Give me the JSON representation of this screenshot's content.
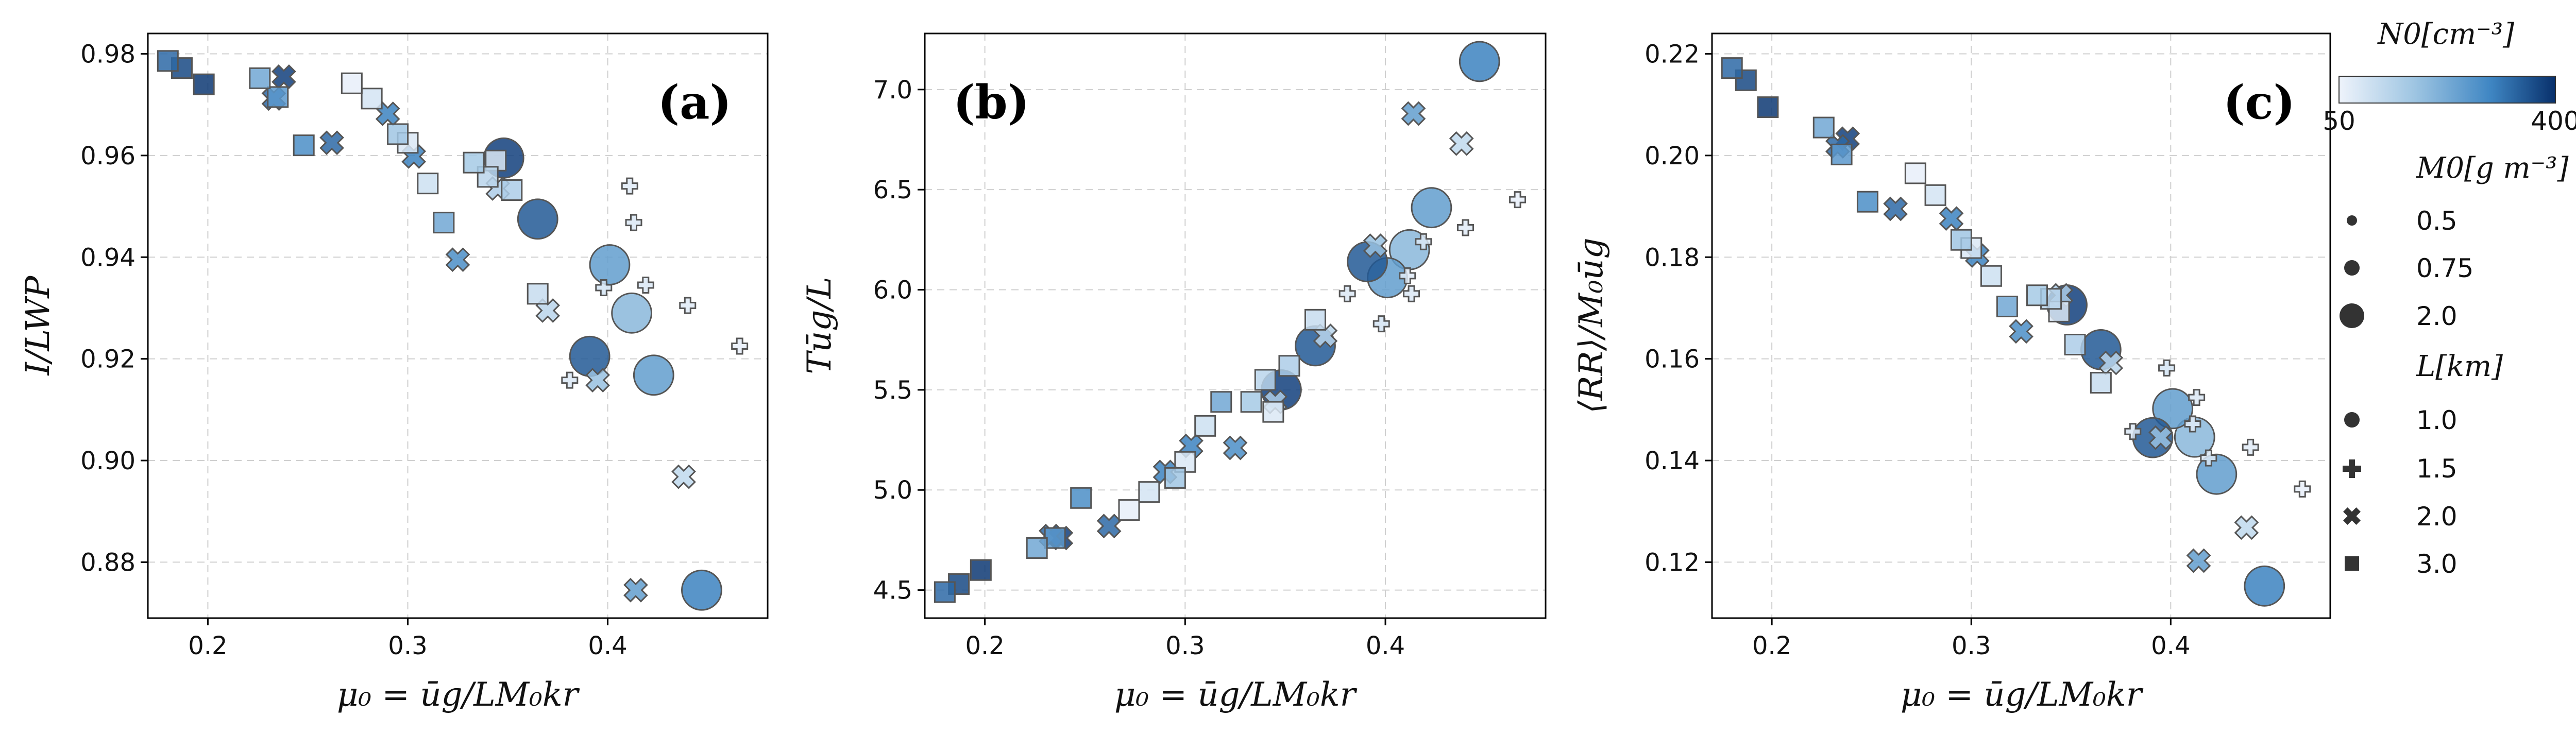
{
  "chart_data": {
    "type": "scatter",
    "colormap": {
      "low": "#eef3fb",
      "high": "#08306b"
    },
    "colorbar": {
      "title": "N0[cm⁻³]",
      "min_label": "50",
      "max_label": "400",
      "min": 50,
      "max": 400
    },
    "size_legend": {
      "title": "M0[g m⁻³]",
      "entries": [
        {
          "label": "0.5",
          "m0": 0.5
        },
        {
          "label": "0.75",
          "m0": 0.75
        },
        {
          "label": "2.0",
          "m0": 2.0
        }
      ]
    },
    "marker_legend": {
      "title": "L[km]",
      "entries": [
        {
          "label": "1.0",
          "L": 1.0,
          "shape": "circle"
        },
        {
          "label": "1.5",
          "L": 1.5,
          "shape": "plus"
        },
        {
          "label": "2.0",
          "L": 2.0,
          "shape": "x"
        },
        {
          "label": "3.0",
          "L": 3.0,
          "shape": "square"
        }
      ]
    },
    "shape_by_L": {
      "1": "circle",
      "1.5": "plus",
      "2": "x",
      "3": "square"
    },
    "shared_x": [
      0.447,
      0.423,
      0.412,
      0.401,
      0.391,
      0.365,
      0.348,
      0.466,
      0.44,
      0.419,
      0.413,
      0.411,
      0.398,
      0.381,
      0.438,
      0.414,
      0.395,
      0.37,
      0.345,
      0.325,
      0.303,
      0.29,
      0.262,
      0.238,
      0.233,
      0.365,
      0.352,
      0.344,
      0.34,
      0.333,
      0.318,
      0.31,
      0.3,
      0.295,
      0.282,
      0.272,
      0.248,
      0.235,
      0.226,
      0.198,
      0.187,
      0.18
    ],
    "point_props": [
      {
        "L": 1,
        "N0": 300,
        "M0": 2
      },
      {
        "L": 1,
        "N0": 250,
        "M0": 2
      },
      {
        "L": 1,
        "N0": 200,
        "M0": 2
      },
      {
        "L": 1,
        "N0": 250,
        "M0": 2
      },
      {
        "L": 1,
        "N0": 350,
        "M0": 2
      },
      {
        "L": 1,
        "N0": 350,
        "M0": 2
      },
      {
        "L": 1,
        "N0": 380,
        "M0": 2
      },
      {
        "L": 1.5,
        "N0": 60,
        "M0": 0.5
      },
      {
        "L": 1.5,
        "N0": 70,
        "M0": 0.5
      },
      {
        "L": 1.5,
        "N0": 80,
        "M0": 0.5
      },
      {
        "L": 1.5,
        "N0": 80,
        "M0": 0.5
      },
      {
        "L": 1.5,
        "N0": 70,
        "M0": 0.5
      },
      {
        "L": 1.5,
        "N0": 90,
        "M0": 0.5
      },
      {
        "L": 1.5,
        "N0": 80,
        "M0": 0.5
      },
      {
        "L": 2,
        "N0": 120,
        "M0": 0.75
      },
      {
        "L": 2,
        "N0": 250,
        "M0": 0.75
      },
      {
        "L": 2,
        "N0": 180,
        "M0": 0.75
      },
      {
        "L": 2,
        "N0": 130,
        "M0": 0.75
      },
      {
        "L": 2,
        "N0": 150,
        "M0": 0.75
      },
      {
        "L": 2,
        "N0": 280,
        "M0": 0.75
      },
      {
        "L": 2,
        "N0": 300,
        "M0": 0.75
      },
      {
        "L": 2,
        "N0": 300,
        "M0": 0.75
      },
      {
        "L": 2,
        "N0": 330,
        "M0": 0.75
      },
      {
        "L": 2,
        "N0": 380,
        "M0": 0.75
      },
      {
        "L": 2,
        "N0": 330,
        "M0": 0.75
      },
      {
        "L": 3,
        "N0": 110,
        "M0": 0.75
      },
      {
        "L": 3,
        "N0": 150,
        "M0": 0.75
      },
      {
        "L": 3,
        "N0": 80,
        "M0": 0.75
      },
      {
        "L": 3,
        "N0": 130,
        "M0": 0.75
      },
      {
        "L": 3,
        "N0": 160,
        "M0": 0.75
      },
      {
        "L": 3,
        "N0": 230,
        "M0": 0.75
      },
      {
        "L": 3,
        "N0": 100,
        "M0": 0.75
      },
      {
        "L": 3,
        "N0": 80,
        "M0": 0.75
      },
      {
        "L": 3,
        "N0": 170,
        "M0": 0.75
      },
      {
        "L": 3,
        "N0": 90,
        "M0": 0.75
      },
      {
        "L": 3,
        "N0": 60,
        "M0": 0.75
      },
      {
        "L": 3,
        "N0": 280,
        "M0": 0.75
      },
      {
        "L": 3,
        "N0": 260,
        "M0": 0.75
      },
      {
        "L": 3,
        "N0": 230,
        "M0": 0.75
      },
      {
        "L": 3,
        "N0": 390,
        "M0": 0.75
      },
      {
        "L": 3,
        "N0": 370,
        "M0": 0.75
      },
      {
        "L": 3,
        "N0": 330,
        "M0": 0.75
      }
    ],
    "panels": [
      {
        "id": "a",
        "panel_label": "(a)",
        "xlabel": "μ₀ = ūg/LM₀kr",
        "ylabel": "I/LWP",
        "xlim": [
          0.17,
          0.48
        ],
        "ylim": [
          0.869,
          0.984
        ],
        "xticks": [
          0.2,
          0.3,
          0.4
        ],
        "xtick_labels": [
          "0.2",
          "0.3",
          "0.4"
        ],
        "yticks": [
          0.88,
          0.9,
          0.92,
          0.94,
          0.96,
          0.98
        ],
        "ytick_labels": [
          "0.88",
          "0.90",
          "0.92",
          "0.94",
          "0.96",
          "0.98"
        ],
        "y": [
          0.8745,
          0.9168,
          0.929,
          0.9385,
          0.9205,
          0.9475,
          0.9595,
          0.9225,
          0.9305,
          0.9345,
          0.9468,
          0.954,
          0.934,
          0.9158,
          0.8968,
          0.8745,
          0.9158,
          0.9295,
          0.9535,
          0.9395,
          0.9598,
          0.9682,
          0.9625,
          0.9755,
          0.9712,
          0.9328,
          0.9532,
          0.959,
          0.9558,
          0.9586,
          0.9468,
          0.9545,
          0.9625,
          0.9642,
          0.9712,
          0.9742,
          0.962,
          0.9715,
          0.9752,
          0.974,
          0.9772,
          0.9786
        ]
      },
      {
        "id": "b",
        "panel_label": "(b)",
        "xlabel": "μ₀ = ūg/LM₀kr",
        "ylabel": "Tūg/L",
        "xlim": [
          0.17,
          0.48
        ],
        "ylim": [
          4.36,
          7.28
        ],
        "xticks": [
          0.2,
          0.3,
          0.4
        ],
        "xtick_labels": [
          "0.2",
          "0.3",
          "0.4"
        ],
        "yticks": [
          4.5,
          5.0,
          5.5,
          6.0,
          6.5,
          7.0
        ],
        "ytick_labels": [
          "4.5",
          "5.0",
          "5.5",
          "6.0",
          "6.5",
          "7.0"
        ],
        "y": [
          7.14,
          6.41,
          6.2,
          6.06,
          6.14,
          5.72,
          5.5,
          6.45,
          6.31,
          6.24,
          5.98,
          6.07,
          5.83,
          5.98,
          6.73,
          6.88,
          6.22,
          5.77,
          5.44,
          5.21,
          5.22,
          5.09,
          4.82,
          4.76,
          4.77,
          5.85,
          5.62,
          5.39,
          5.55,
          5.44,
          5.44,
          5.32,
          5.14,
          5.06,
          4.99,
          4.9,
          4.96,
          4.76,
          4.71,
          4.6,
          4.53,
          4.49
        ]
      },
      {
        "id": "c",
        "panel_label": "(c)",
        "xlabel": "μ₀ = ūg/LM₀kr",
        "ylabel": "⟨RR⟩/M₀ūg",
        "xlim": [
          0.17,
          0.48
        ],
        "ylim": [
          0.109,
          0.224
        ],
        "xticks": [
          0.2,
          0.3,
          0.4
        ],
        "xtick_labels": [
          "0.2",
          "0.3",
          "0.4"
        ],
        "yticks": [
          0.12,
          0.14,
          0.16,
          0.18,
          0.2,
          0.22
        ],
        "ytick_labels": [
          "0.12",
          "0.14",
          "0.16",
          "0.18",
          "0.20",
          "0.22"
        ],
        "y": [
          0.1153,
          0.1373,
          0.1446,
          0.1502,
          0.1445,
          0.1618,
          0.1706,
          0.1344,
          0.1426,
          0.1405,
          0.1524,
          0.1472,
          0.1582,
          0.1457,
          0.1268,
          0.1203,
          0.1445,
          0.1592,
          0.1725,
          0.1654,
          0.1803,
          0.1876,
          0.1895,
          0.2033,
          0.2018,
          0.1553,
          0.1628,
          0.1693,
          0.1718,
          0.1725,
          0.1703,
          0.1763,
          0.1818,
          0.1834,
          0.1922,
          0.1965,
          0.1909,
          0.2002,
          0.2055,
          0.2095,
          0.2148,
          0.2172
        ]
      }
    ]
  }
}
